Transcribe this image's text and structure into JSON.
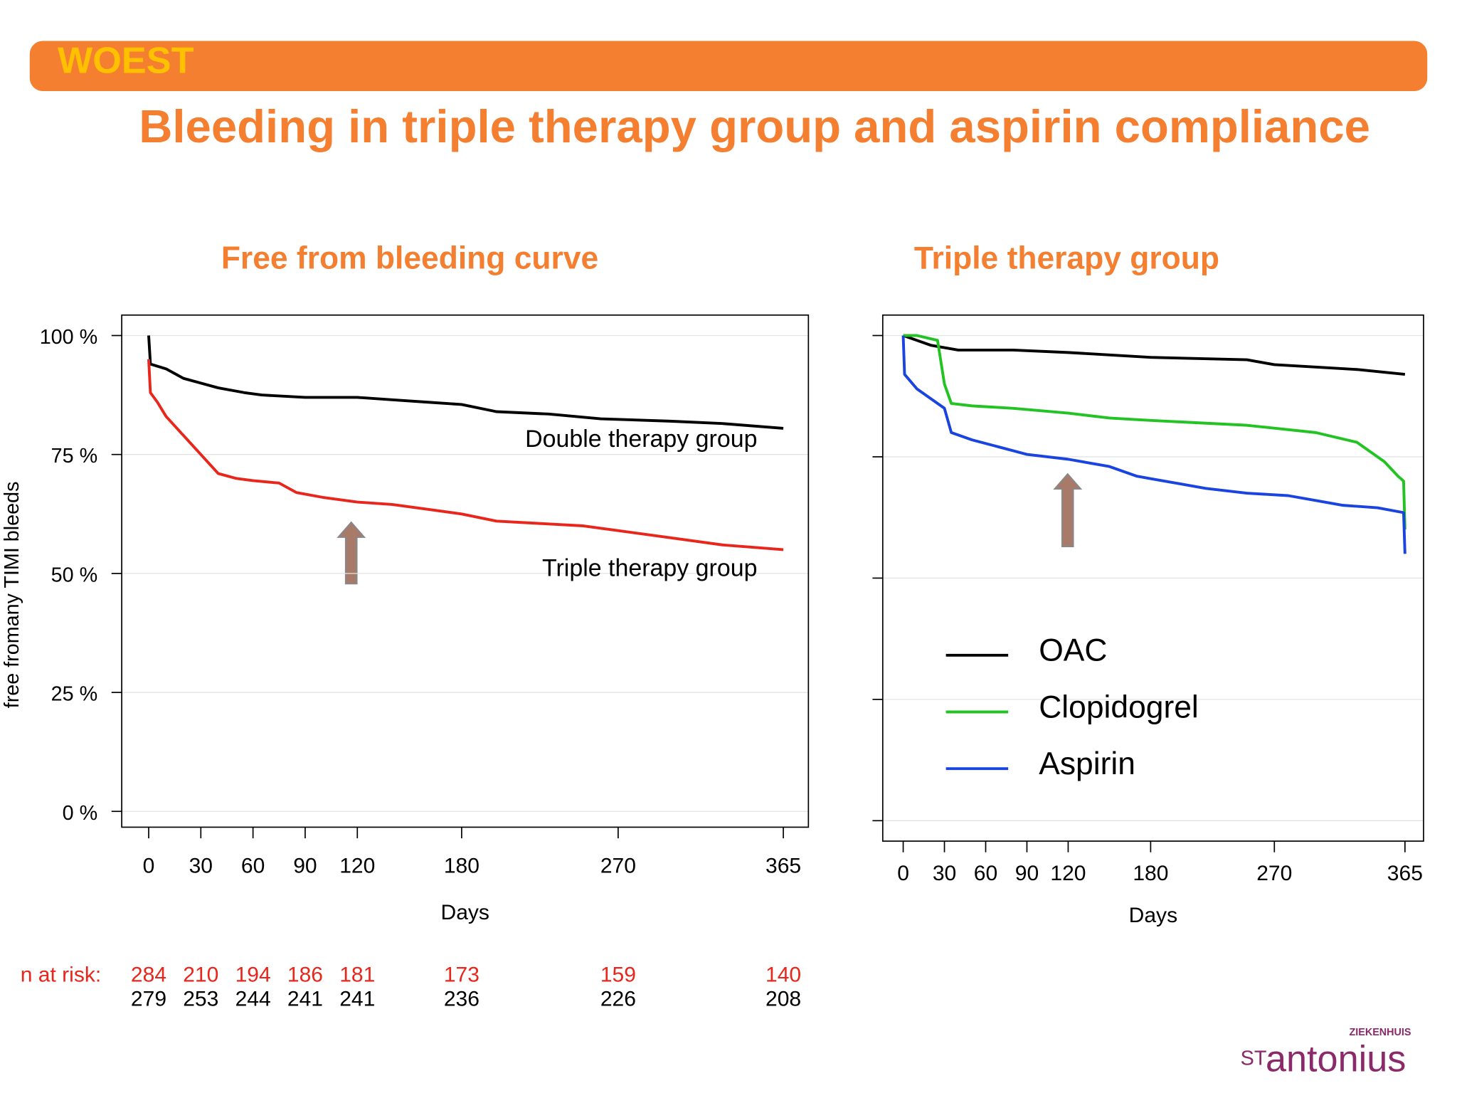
{
  "header": {
    "tag": "WOEST",
    "title": "Bleeding in triple therapy group and aspirin compliance"
  },
  "chart_data": [
    {
      "type": "line",
      "title": "Free from bleeding curve",
      "x_label": "Days",
      "y_label": "free fromany TIMI bleeds",
      "xlim": [
        0,
        365
      ],
      "xticks": [
        0,
        30,
        60,
        90,
        120,
        180,
        270,
        365
      ],
      "ylim": [
        0,
        100
      ],
      "yticks": [
        {
          "value": 0,
          "label": "0 %"
        },
        {
          "value": 25,
          "label": "25 %"
        },
        {
          "value": 50,
          "label": "50 %"
        },
        {
          "value": 75,
          "label": "75 %"
        },
        {
          "value": 100,
          "label": "100 %"
        }
      ],
      "grid": true,
      "series": [
        {
          "name": "Double therapy group",
          "color": "#000000",
          "x": [
            0,
            1,
            10,
            20,
            30,
            40,
            55,
            65,
            90,
            120,
            140,
            160,
            180,
            200,
            230,
            260,
            300,
            330,
            365
          ],
          "values": [
            100,
            94,
            93,
            91,
            90,
            89,
            88,
            87.5,
            87,
            87,
            86.5,
            86,
            85.5,
            84,
            83.5,
            82.5,
            82,
            81.5,
            80.5
          ]
        },
        {
          "name": "Triple therapy group",
          "color": "#e8261c",
          "x": [
            0,
            1,
            5,
            10,
            15,
            20,
            25,
            30,
            40,
            50,
            60,
            75,
            85,
            100,
            120,
            140,
            160,
            180,
            200,
            250,
            270,
            300,
            330,
            365
          ],
          "values": [
            95,
            88,
            86,
            83,
            81,
            79,
            77,
            75,
            71,
            70,
            69.5,
            69,
            67,
            66,
            65,
            64.5,
            63.5,
            62.5,
            61,
            60,
            59,
            57.5,
            56,
            55
          ]
        }
      ],
      "n_at_risk": {
        "label": "n at risk:",
        "rows": [
          {
            "color": "#e8261c",
            "values": [
              284,
              210,
              194,
              186,
              181,
              173,
              159,
              140
            ]
          },
          {
            "color": "#000000",
            "values": [
              279,
              253,
              244,
              241,
              241,
              236,
              226,
              208
            ]
          }
        ]
      }
    },
    {
      "type": "line",
      "title": "Triple therapy group",
      "x_label": "Days",
      "xlim": [
        0,
        365
      ],
      "xticks": [
        0,
        30,
        60,
        90,
        120,
        180,
        270,
        365
      ],
      "ylim": [
        0,
        100
      ],
      "yticks": [
        0,
        25,
        50,
        75,
        100
      ],
      "grid": true,
      "legend": "lower left",
      "series": [
        {
          "name": "OAC",
          "color": "#000000",
          "x": [
            0,
            10,
            20,
            40,
            80,
            120,
            180,
            250,
            270,
            300,
            330,
            365
          ],
          "values": [
            100,
            99,
            98,
            97,
            97,
            96.5,
            95.5,
            95,
            94,
            93.5,
            93,
            92
          ]
        },
        {
          "name": "Clopidogrel",
          "color": "#22c322",
          "x": [
            0,
            10,
            25,
            30,
            35,
            50,
            80,
            120,
            150,
            180,
            250,
            300,
            330,
            350,
            360,
            364,
            365
          ],
          "values": [
            100,
            100,
            99,
            90,
            86,
            85.5,
            85,
            84,
            83,
            82.5,
            81.5,
            80,
            78,
            74,
            71,
            70,
            60
          ]
        },
        {
          "name": "Aspirin",
          "color": "#1a44e0",
          "x": [
            0,
            1,
            10,
            20,
            30,
            35,
            50,
            70,
            90,
            120,
            150,
            170,
            180,
            200,
            220,
            250,
            280,
            300,
            320,
            345,
            364,
            365
          ],
          "values": [
            100,
            92,
            89,
            87,
            85,
            80,
            78.5,
            77,
            75.5,
            74.5,
            73,
            71,
            70.5,
            69.5,
            68.5,
            67.5,
            67,
            66,
            65,
            64.5,
            63.5,
            55
          ]
        }
      ]
    }
  ],
  "logo": {
    "top": "ZIEKENHUIS",
    "st": "ST",
    "name": "antonius"
  }
}
